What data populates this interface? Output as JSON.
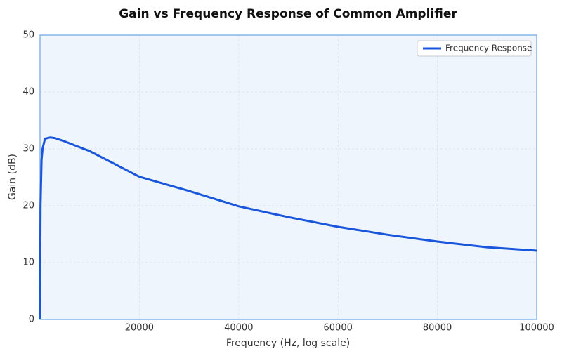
{
  "chart_data": {
    "type": "line",
    "title": "Gain vs Frequency Response of Common Amplifier",
    "xlabel": "Frequency (Hz, log scale)",
    "ylabel": "Gain (dB)",
    "x": [
      0,
      100,
      300,
      500,
      1000,
      2000,
      3000,
      5000,
      10000,
      20000,
      30000,
      40000,
      50000,
      60000,
      70000,
      80000,
      90000,
      100000
    ],
    "series": [
      {
        "name": "Frequency Response",
        "color": "#1a56db",
        "values": [
          0,
          20,
          28,
          30,
          31.8,
          32,
          31.9,
          31.3,
          29.6,
          25.1,
          22.6,
          19.9,
          18.0,
          16.3,
          14.9,
          13.7,
          12.7,
          12.1
        ]
      }
    ],
    "xlim": [
      0,
      100000
    ],
    "ylim": [
      0,
      50
    ],
    "xticks": [
      20000,
      40000,
      60000,
      80000,
      100000
    ],
    "yticks": [
      0,
      10,
      20,
      30,
      40,
      50
    ],
    "grid": true,
    "legend": "upper right"
  }
}
